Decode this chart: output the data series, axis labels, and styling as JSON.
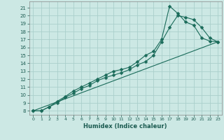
{
  "title": "",
  "xlabel": "Humidex (Indice chaleur)",
  "bg_color": "#cce8e4",
  "grid_color": "#aacfcb",
  "line_color": "#1a6b5a",
  "xlim": [
    -0.5,
    23.5
  ],
  "ylim": [
    7.5,
    21.8
  ],
  "xticks": [
    0,
    1,
    2,
    3,
    4,
    5,
    6,
    7,
    8,
    9,
    10,
    11,
    12,
    13,
    14,
    15,
    16,
    17,
    18,
    19,
    20,
    21,
    22,
    23
  ],
  "yticks": [
    8,
    9,
    10,
    11,
    12,
    13,
    14,
    15,
    16,
    17,
    18,
    19,
    20,
    21
  ],
  "line1_x": [
    0,
    1,
    2,
    3,
    4,
    5,
    6,
    7,
    8,
    9,
    10,
    11,
    12,
    13,
    14,
    15,
    16,
    17,
    18,
    19,
    20,
    21,
    22,
    23
  ],
  "line1_y": [
    8,
    8,
    8.5,
    9.2,
    9.8,
    10.5,
    11.0,
    11.5,
    12.0,
    12.5,
    13.0,
    13.2,
    13.5,
    14.2,
    15.0,
    15.5,
    17.0,
    21.2,
    20.3,
    19.2,
    18.8,
    17.2,
    16.8,
    16.7
  ],
  "line2_x": [
    0,
    1,
    2,
    3,
    4,
    5,
    6,
    7,
    8,
    9,
    10,
    11,
    12,
    13,
    14,
    15,
    16,
    17,
    18,
    19,
    20,
    21,
    22,
    23
  ],
  "line2_y": [
    8,
    8,
    8.5,
    9.0,
    9.7,
    10.2,
    10.8,
    11.2,
    11.8,
    12.2,
    12.5,
    12.8,
    13.2,
    13.8,
    14.2,
    15.0,
    16.7,
    18.5,
    20.0,
    19.8,
    19.5,
    18.5,
    17.2,
    16.7
  ],
  "line3_x": [
    0,
    23
  ],
  "line3_y": [
    8,
    16.7
  ],
  "markersize": 2.5,
  "linewidth": 0.8
}
